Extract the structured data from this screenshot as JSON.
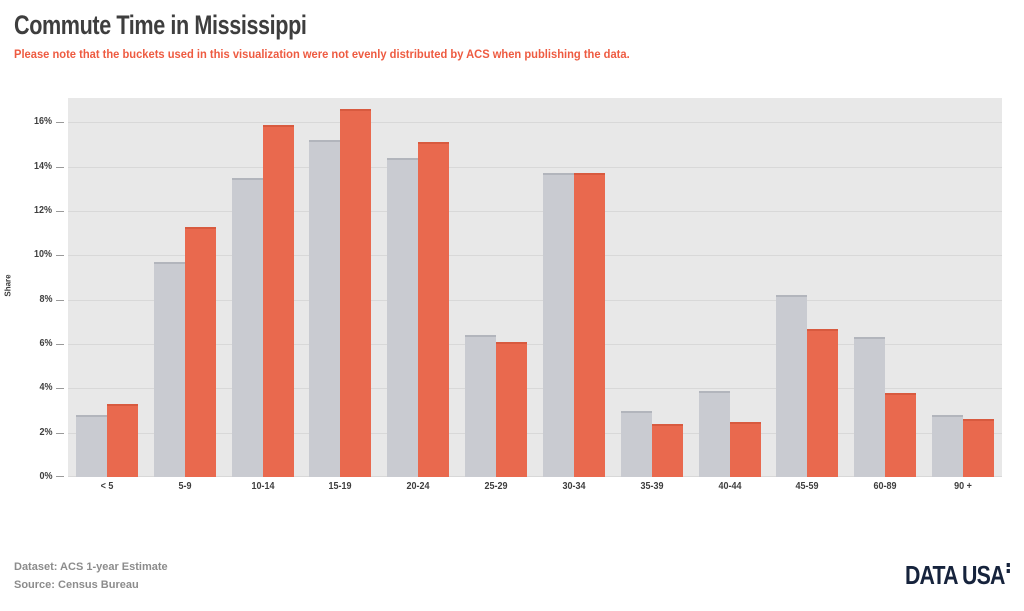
{
  "header": {
    "title": "Commute Time in Mississippi",
    "subtitle": "Please note that the buckets used in this visualization were not evenly distributed by ACS when publishing the data."
  },
  "chart_data": {
    "type": "bar",
    "title": "Commute Time in Mississippi",
    "xlabel": "",
    "ylabel": "Share",
    "categories": [
      "< 5",
      "5-9",
      "10-14",
      "15-19",
      "20-24",
      "25-29",
      "30-34",
      "35-39",
      "40-44",
      "45-59",
      "60-89",
      "90 +"
    ],
    "series": [
      {
        "name": "gray-series",
        "color": "#c9cbd1",
        "edge": "#b2b5bc",
        "values": [
          2.8,
          9.7,
          13.5,
          15.2,
          14.4,
          6.4,
          13.7,
          3.0,
          3.9,
          8.2,
          6.3,
          2.8
        ]
      },
      {
        "name": "orange-series",
        "color": "#e9694e",
        "edge": "#d85a3f",
        "values": [
          3.3,
          11.3,
          15.9,
          16.6,
          15.1,
          6.1,
          13.7,
          2.4,
          2.5,
          6.7,
          3.8,
          2.6
        ]
      }
    ],
    "ylim": [
      0,
      17.1
    ],
    "ytick_step": 2,
    "ytick_suffix": "%",
    "grid": true,
    "legend_position": "none"
  },
  "footer": {
    "dataset_label": "Dataset: ACS 1-year Estimate",
    "source_label": "Source: Census Bureau",
    "logo_text": "DATA USA"
  },
  "colors": {
    "page_background": "#ffffff",
    "plot_background": "#e8e8e8",
    "gridline": "#d8d8d8",
    "title_text": "#3e3e3e",
    "subtitle_text": "#ee5b41",
    "footer_text": "#8c8c8c",
    "logo_text": "#16233c"
  }
}
